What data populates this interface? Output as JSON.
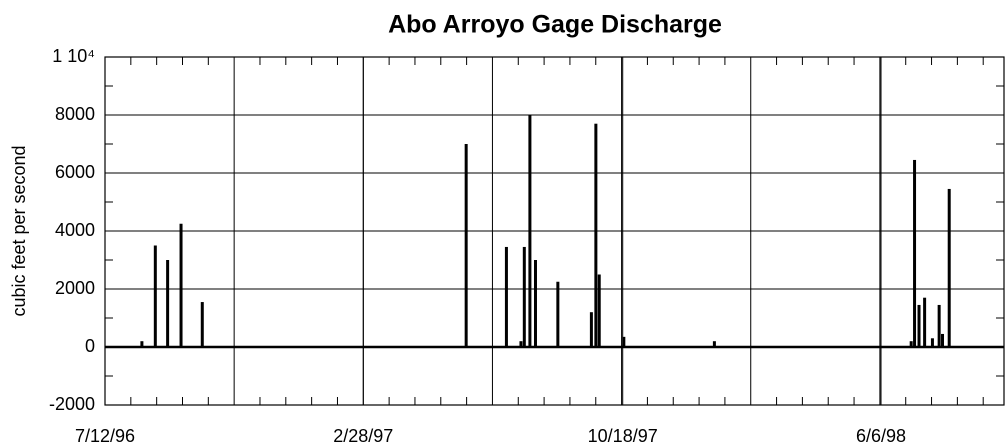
{
  "chart_data": {
    "type": "bar",
    "title": "Abo Arroyo Gage Discharge",
    "y_label": "cubic feet per second",
    "x": [
      "8/14/96",
      "8/26/96",
      "9/6/96",
      "9/18/96",
      "10/7/96",
      "5/31/97",
      "7/6/97",
      "7/19/97",
      "7/22/97",
      "7/27/97",
      "8/1/97",
      "8/21/97",
      "9/20/97",
      "9/24/97",
      "9/27/97",
      "10/19/97",
      "1/8/98",
      "7/3/98",
      "7/6/98",
      "7/10/98",
      "7/15/98",
      "7/22/98",
      "7/28/98",
      "7/31/98",
      "8/6/98"
    ],
    "values": [
      200,
      3500,
      3000,
      4250,
      1550,
      7000,
      3450,
      200,
      3450,
      8000,
      3000,
      2250,
      1200,
      7700,
      2500,
      350,
      200,
      200,
      6450,
      1450,
      1700,
      300,
      1450,
      450,
      5450
    ],
    "color": "#000000",
    "xlim": [
      "7/12/96",
      "9/24/98"
    ],
    "xticks": [
      "7/12/96",
      "2/28/97",
      "10/18/97",
      "6/6/98"
    ],
    "ylim": [
      -2000,
      10000
    ],
    "yticks": [
      -2000,
      0,
      2000,
      4000,
      6000,
      8000,
      {
        "value": 10000,
        "label": "1 10⁴"
      }
    ],
    "grid": true
  }
}
